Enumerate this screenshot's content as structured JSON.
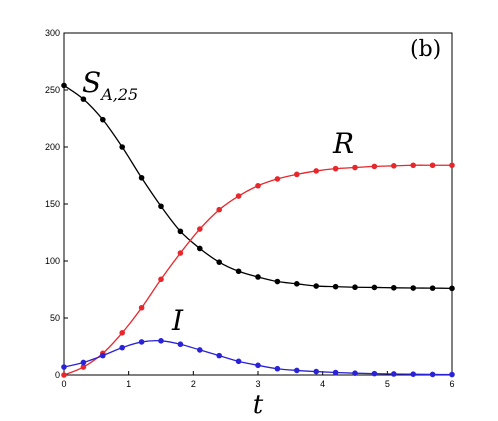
{
  "chart_data": {
    "type": "line",
    "panel_label": "(b)",
    "xlabel": "t",
    "ylabel": "",
    "xlim": [
      0,
      6
    ],
    "ylim": [
      0,
      300
    ],
    "xticks": [
      0,
      1,
      2,
      3,
      4,
      5,
      6
    ],
    "yticks": [
      0,
      50,
      100,
      150,
      200,
      250,
      300
    ],
    "grid": false,
    "x": [
      0,
      0.3,
      0.6,
      0.9,
      1.2,
      1.5,
      1.8,
      2.1,
      2.4,
      2.7,
      3.0,
      3.3,
      3.6,
      3.9,
      4.2,
      4.5,
      4.8,
      5.1,
      5.4,
      5.7,
      6.0
    ],
    "series": [
      {
        "name": "S",
        "label_main": "S",
        "label_sub": "A,25",
        "color": "#000000",
        "values": [
          254,
          242,
          224,
          200,
          173,
          148,
          126,
          111,
          99,
          91,
          86,
          82,
          80,
          78,
          77.5,
          77,
          76.8,
          76.5,
          76.3,
          76.2,
          76
        ]
      },
      {
        "name": "R",
        "label_main": "R",
        "label_sub": "",
        "color": "#e8262b",
        "values": [
          0,
          7,
          19,
          37,
          59,
          84,
          107,
          128,
          145,
          157,
          166,
          172,
          176,
          179,
          181,
          182,
          183,
          183.5,
          184,
          184,
          184
        ]
      },
      {
        "name": "I",
        "label_main": "I",
        "label_sub": "",
        "color": "#2a22d6",
        "values": [
          7,
          11,
          17,
          24,
          29,
          30,
          27,
          22,
          17,
          12,
          8.5,
          5.5,
          4,
          3,
          2.2,
          1.6,
          1.2,
          0.9,
          0.7,
          0.5,
          0.4
        ]
      }
    ]
  }
}
